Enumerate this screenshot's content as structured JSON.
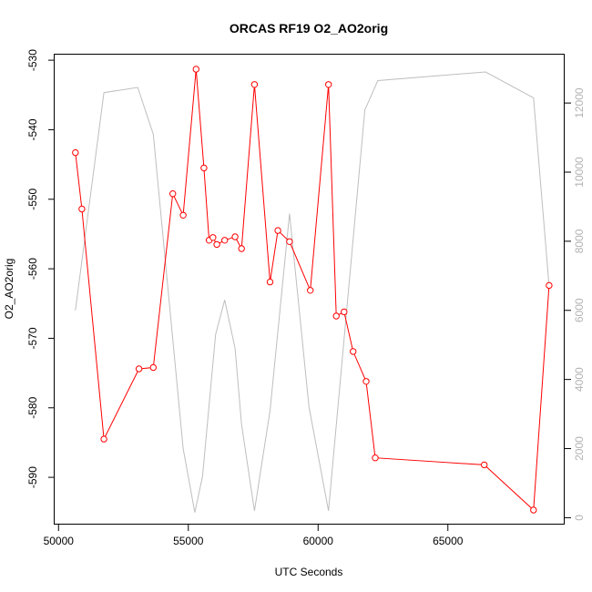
{
  "chart_data": {
    "type": "line",
    "title": "ORCAS RF19 O2_AO2orig",
    "xlabel": "UTC Seconds",
    "ylabel": "O2_AO2orig",
    "xlim": [
      49850,
      69500
    ],
    "ylim": [
      -596.8,
      -529.2
    ],
    "y2lim": [
      -200,
      13400
    ],
    "x_ticks": [
      50000,
      55000,
      60000,
      65000
    ],
    "x_tick_labels": [
      "50000",
      "55000",
      "60000",
      "65000"
    ],
    "y_ticks": [
      -590,
      -580,
      -570,
      -560,
      -550,
      -540,
      -530
    ],
    "y_tick_labels": [
      "-590",
      "-580",
      "-570",
      "-560",
      "-550",
      "-540",
      "-530"
    ],
    "y2_ticks": [
      0,
      2000,
      4000,
      6000,
      8000,
      10000,
      12000
    ],
    "y2_tick_labels": [
      "0",
      "2000",
      "4000",
      "6000",
      "8000",
      "10000",
      "12000"
    ],
    "series": [
      {
        "color": "#ff0000",
        "marker": "open-circle",
        "axis": "left",
        "x": [
          50650,
          50900,
          51750,
          53100,
          53650,
          54400,
          54800,
          55300,
          55600,
          55800,
          55950,
          56100,
          56400,
          56800,
          57050,
          57550,
          58150,
          58450,
          58900,
          59700,
          60400,
          60700,
          61000,
          61350,
          61850,
          62200,
          66400,
          68300,
          68900
        ],
        "y": [
          -543.3,
          -551.4,
          -584.5,
          -574.4,
          -574.2,
          -549.2,
          -552.3,
          -531.3,
          -545.5,
          -555.9,
          -555.5,
          -556.5,
          -555.9,
          -555.4,
          -557.1,
          -533.5,
          -561.9,
          -554.5,
          -556.1,
          -563.1,
          -533.5,
          -566.8,
          -566.2,
          -571.9,
          -576.2,
          -587.2,
          -588.2,
          -594.7,
          -562.4
        ]
      },
      {
        "color": "#bebebe",
        "axis": "right",
        "x": [
          50650,
          51750,
          53050,
          53650,
          54800,
          55250,
          55550,
          56050,
          56400,
          56800,
          57050,
          57550,
          58150,
          58900,
          59650,
          60400,
          61800,
          62300,
          66450,
          68300,
          68900
        ],
        "y": [
          6000,
          12300,
          12450,
          11100,
          2000,
          150,
          1200,
          5300,
          6300,
          4900,
          2700,
          200,
          3100,
          8800,
          3200,
          200,
          11800,
          12650,
          12900,
          12150,
          6700
        ]
      }
    ]
  }
}
